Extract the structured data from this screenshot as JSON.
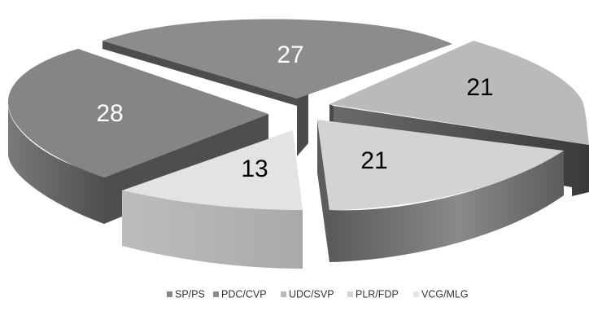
{
  "chart_data": {
    "type": "pie",
    "title": "",
    "categories": [
      "SP/PS",
      "PDC/CVP",
      "UDC/SVP",
      "PLR/FDP",
      "VCG/MLG"
    ],
    "values": [
      28,
      27,
      21,
      21,
      13
    ],
    "colors": {
      "SP/PS": "#858585",
      "PDC/CVP": "#8c8c8c",
      "UDC/SVP": "#bababa",
      "PLR/FDP": "#d3d3d3",
      "VCG/MLG": "#e3e3e3"
    },
    "label_colors": {
      "SP/PS": "#ffffff",
      "PDC/CVP": "#ffffff",
      "UDC/SVP": "#000000",
      "PLR/FDP": "#000000",
      "VCG/MLG": "#000000"
    },
    "style": "3d-exploded",
    "legend": "bottom"
  }
}
